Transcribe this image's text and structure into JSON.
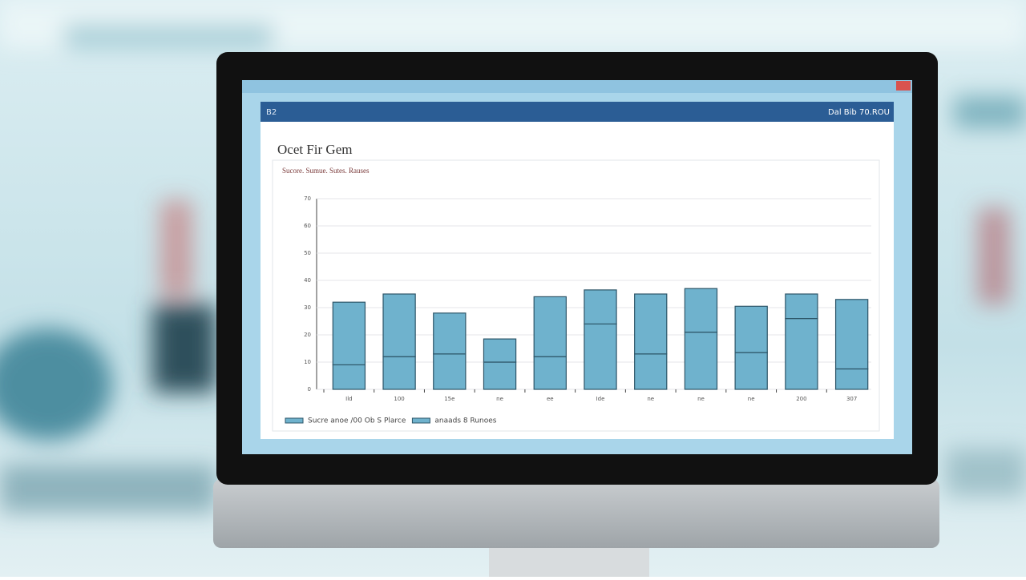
{
  "window": {
    "toolbar_left": "B2",
    "toolbar_right": "Dal Bib 70.ROU"
  },
  "chart_data": {
    "type": "bar",
    "stacked": true,
    "title": "Ocet Fir Gem",
    "subtitle": "Sucore. Sumue. Sutes. Rauses",
    "categories": [
      "Ild",
      "100",
      "15e",
      "ne",
      "ee",
      "Ide",
      "ne",
      "ne",
      "ne",
      "200",
      "307"
    ],
    "series": [
      {
        "name": "Sucre anoe /00 Ob S Plarce",
        "color": "#6fb2cd",
        "values": [
          9,
          12,
          13,
          10,
          12,
          24,
          13,
          21,
          13.5,
          26,
          7.5
        ]
      },
      {
        "name": "anaads 8 Runoes",
        "color": "#6fb2cd",
        "values": [
          23,
          23,
          15,
          8.5,
          22,
          12.5,
          22,
          16,
          17,
          9,
          25.5
        ]
      }
    ],
    "ylim": [
      0,
      70
    ],
    "yticks": [
      0,
      10,
      20,
      30,
      40,
      50,
      60,
      70
    ],
    "grid": true
  }
}
